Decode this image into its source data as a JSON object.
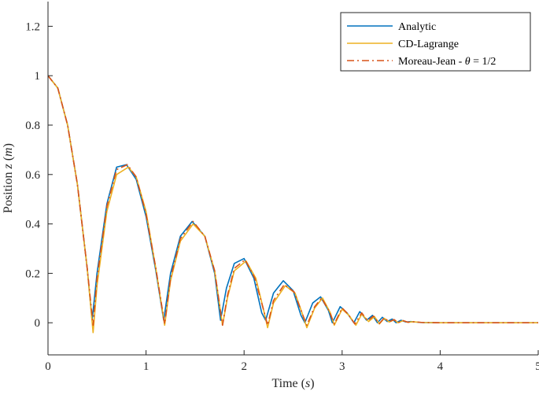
{
  "chart_data": {
    "type": "line",
    "xlabel": "Time (s)",
    "ylabel": "Position z (m)",
    "xlim": [
      0,
      5
    ],
    "ylim": [
      -0.13,
      1.3
    ],
    "xticks": [
      "0",
      "1",
      "2",
      "3",
      "4",
      "5"
    ],
    "yticks": [
      "0",
      "0.2",
      "0.4",
      "0.6",
      "0.8",
      "1",
      "1.2"
    ],
    "grid": false,
    "legend_position": "top-right",
    "series": [
      {
        "name": "Analytic",
        "color": "#0072BD",
        "style": "solid",
        "x": [
          0,
          0.1,
          0.2,
          0.3,
          0.4,
          0.45,
          0.5,
          0.6,
          0.7,
          0.8,
          0.9,
          1.0,
          1.1,
          1.18,
          1.25,
          1.35,
          1.47,
          1.6,
          1.7,
          1.76,
          1.82,
          1.9,
          2.0,
          2.1,
          2.18,
          2.22,
          2.3,
          2.4,
          2.5,
          2.58,
          2.62,
          2.7,
          2.78,
          2.86,
          2.9,
          2.98,
          3.05,
          3.12,
          3.18,
          3.25,
          3.31,
          3.36,
          3.41,
          3.46,
          3.51,
          3.55,
          3.6,
          3.65,
          3.7,
          3.8,
          4.0,
          4.5,
          5.0
        ],
        "y": [
          1.0,
          0.95,
          0.8,
          0.56,
          0.22,
          0.01,
          0.2,
          0.48,
          0.63,
          0.64,
          0.58,
          0.43,
          0.21,
          0.01,
          0.2,
          0.35,
          0.41,
          0.35,
          0.2,
          0.01,
          0.14,
          0.24,
          0.26,
          0.18,
          0.04,
          0.01,
          0.12,
          0.17,
          0.13,
          0.03,
          0.0,
          0.08,
          0.105,
          0.05,
          0.0,
          0.065,
          0.04,
          0.0,
          0.045,
          0.01,
          0.03,
          0.0,
          0.022,
          0.005,
          0.015,
          0.0,
          0.01,
          0.003,
          0.005,
          0.001,
          0.0,
          0.0,
          0.0
        ]
      },
      {
        "name": "CD-Lagrange",
        "color": "#EDB120",
        "style": "solid",
        "x": [
          0,
          0.1,
          0.2,
          0.3,
          0.4,
          0.46,
          0.5,
          0.6,
          0.7,
          0.82,
          0.9,
          1.0,
          1.1,
          1.19,
          1.25,
          1.35,
          1.48,
          1.6,
          1.7,
          1.78,
          1.83,
          1.9,
          2.02,
          2.12,
          2.2,
          2.24,
          2.3,
          2.42,
          2.52,
          2.6,
          2.64,
          2.72,
          2.8,
          2.88,
          2.92,
          3.0,
          3.07,
          3.14,
          3.2,
          3.27,
          3.33,
          3.38,
          3.43,
          3.48,
          3.53,
          3.57,
          3.62,
          3.67,
          3.72,
          3.82,
          4.0,
          4.5,
          5.0
        ],
        "y": [
          1.0,
          0.95,
          0.8,
          0.56,
          0.22,
          -0.04,
          0.15,
          0.45,
          0.6,
          0.63,
          0.59,
          0.45,
          0.22,
          -0.01,
          0.17,
          0.33,
          0.4,
          0.35,
          0.21,
          -0.01,
          0.1,
          0.21,
          0.25,
          0.18,
          0.05,
          -0.02,
          0.08,
          0.15,
          0.12,
          0.03,
          -0.02,
          0.06,
          0.1,
          0.04,
          -0.01,
          0.055,
          0.03,
          -0.01,
          0.035,
          0.005,
          0.025,
          -0.005,
          0.018,
          0.003,
          0.012,
          0.0,
          0.008,
          0.002,
          0.004,
          0.001,
          0.0,
          0.0,
          0.0
        ]
      },
      {
        "name": "Moreau-Jean - θ = 1/2",
        "color": "#D95319",
        "style": "dashdot",
        "x": [
          0,
          0.1,
          0.2,
          0.3,
          0.4,
          0.46,
          0.5,
          0.6,
          0.7,
          0.81,
          0.9,
          1.0,
          1.1,
          1.19,
          1.25,
          1.35,
          1.48,
          1.6,
          1.7,
          1.78,
          1.83,
          1.9,
          2.01,
          2.11,
          2.2,
          2.24,
          2.3,
          2.41,
          2.51,
          2.6,
          2.64,
          2.72,
          2.79,
          2.87,
          2.92,
          3.0,
          3.06,
          3.13,
          3.2,
          3.26,
          3.32,
          3.38,
          3.43,
          3.48,
          3.53,
          3.57,
          3.62,
          3.67,
          3.72,
          3.82,
          4.0,
          4.5,
          5.0
        ],
        "y": [
          1.0,
          0.95,
          0.8,
          0.56,
          0.22,
          -0.01,
          0.18,
          0.47,
          0.62,
          0.64,
          0.59,
          0.44,
          0.22,
          -0.005,
          0.18,
          0.34,
          0.41,
          0.35,
          0.21,
          -0.01,
          0.11,
          0.22,
          0.255,
          0.18,
          0.05,
          -0.01,
          0.09,
          0.155,
          0.125,
          0.03,
          -0.01,
          0.065,
          0.1,
          0.045,
          -0.005,
          0.06,
          0.035,
          -0.005,
          0.04,
          0.008,
          0.027,
          -0.003,
          0.02,
          0.004,
          0.013,
          0.0,
          0.009,
          0.002,
          0.004,
          0.001,
          0.0,
          0.0,
          0.0
        ]
      }
    ]
  }
}
